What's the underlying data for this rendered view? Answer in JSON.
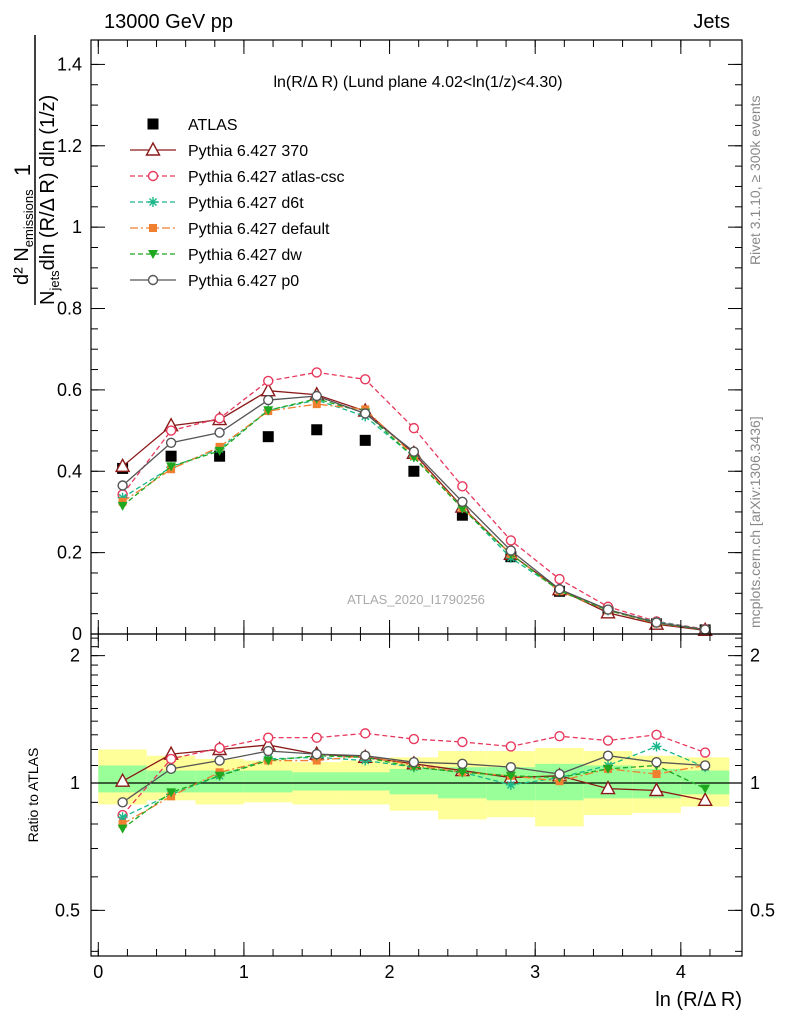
{
  "header": {
    "left": "13000 GeV pp",
    "right": "Jets"
  },
  "side": {
    "rivet": "Rivet 3.1.10, ≥ 300k events",
    "mcplots": "mcplots.cern.ch [arXiv:1306.3436]"
  },
  "chart_data": {
    "type": "line",
    "title": "ln(R/Δ R) (Lund plane 4.02<ln(1/z)<4.30)",
    "watermark": "ATLAS_2020_I1790256",
    "xlabel": "ln (R/Δ R)",
    "ylabel": {
      "numerator": "d² N",
      "numerator_sub": "emissions",
      "denominator": "N",
      "denominator_sub": "jets",
      "denominator_rest": "dln (R/Δ R) dln (1/z)",
      "prefactor": "1"
    },
    "ratio_ylabel": "Ratio to ATLAS",
    "xlim": [
      -0.05,
      4.42
    ],
    "ylim": [
      0,
      1.46
    ],
    "ratio_ylim": [
      0.39,
      2.25
    ],
    "x_ticks": [
      "0",
      "1",
      "2",
      "3",
      "4"
    ],
    "y_ticks": [
      "0",
      "0.2",
      "0.4",
      "0.6",
      "0.8",
      "1",
      "1.2",
      "1.4"
    ],
    "ratio_ticks": [
      "0.5",
      "1",
      "2"
    ],
    "x": [
      0.167,
      0.5,
      0.833,
      1.167,
      1.5,
      1.833,
      2.167,
      2.5,
      2.833,
      3.167,
      3.5,
      3.833,
      4.167
    ],
    "band_edges": [
      0,
      0.333,
      0.667,
      1.0,
      1.333,
      1.667,
      2.0,
      2.333,
      2.667,
      3.0,
      3.333,
      3.667,
      4.0,
      4.333
    ],
    "band_inner": [
      [
        0.95,
        1.1
      ],
      [
        0.95,
        1.07
      ],
      [
        0.95,
        1.07
      ],
      [
        0.95,
        1.07
      ],
      [
        0.96,
        1.06
      ],
      [
        0.96,
        1.06
      ],
      [
        0.94,
        1.08
      ],
      [
        0.92,
        1.09
      ],
      [
        0.91,
        1.09
      ],
      [
        0.91,
        1.11
      ],
      [
        0.92,
        1.1
      ],
      [
        0.92,
        1.08
      ],
      [
        0.94,
        1.07
      ]
    ],
    "band_outer": [
      [
        0.89,
        1.2
      ],
      [
        0.91,
        1.16
      ],
      [
        0.89,
        1.14
      ],
      [
        0.9,
        1.13
      ],
      [
        0.89,
        1.12
      ],
      [
        0.89,
        1.13
      ],
      [
        0.86,
        1.15
      ],
      [
        0.82,
        1.19
      ],
      [
        0.83,
        1.19
      ],
      [
        0.79,
        1.21
      ],
      [
        0.84,
        1.19
      ],
      [
        0.85,
        1.16
      ],
      [
        0.88,
        1.15
      ]
    ],
    "series": [
      {
        "name": "ATLAS",
        "color": "#000000",
        "marker": "square",
        "line": "none",
        "values": [
          0.407,
          0.437,
          0.437,
          0.485,
          0.502,
          0.476,
          0.4,
          0.292,
          0.19,
          0.105,
          0.054,
          0.025,
          0.01
        ]
      },
      {
        "name": "Pythia 6.427 370",
        "color": "#8b1a1a",
        "marker": "triangle-open",
        "line": "solid",
        "values": [
          0.412,
          0.512,
          0.527,
          0.598,
          0.588,
          0.548,
          0.444,
          0.312,
          0.196,
          0.109,
          0.052,
          0.024,
          0.009
        ],
        "ratio": [
          1.01,
          1.17,
          1.2,
          1.23,
          1.17,
          1.15,
          1.11,
          1.07,
          1.03,
          1.04,
          0.97,
          0.96,
          0.91
        ]
      },
      {
        "name": "Pythia 6.427 atlas-csc",
        "color": "#e8385c",
        "marker": "circle-open",
        "line": "dashed",
        "values": [
          0.343,
          0.5,
          0.53,
          0.622,
          0.643,
          0.626,
          0.506,
          0.363,
          0.23,
          0.135,
          0.067,
          0.031,
          0.012
        ],
        "ratio": [
          0.84,
          1.14,
          1.21,
          1.28,
          1.28,
          1.31,
          1.27,
          1.25,
          1.22,
          1.29,
          1.26,
          1.3,
          1.18
        ]
      },
      {
        "name": "Pythia 6.427 d6t",
        "color": "#1ab88a",
        "marker": "star",
        "line": "dashed",
        "values": [
          0.335,
          0.41,
          0.455,
          0.55,
          0.575,
          0.535,
          0.435,
          0.31,
          0.187,
          0.108,
          0.058,
          0.03,
          0.011
        ],
        "ratio": [
          0.83,
          0.94,
          1.04,
          1.14,
          1.15,
          1.13,
          1.09,
          1.06,
          0.99,
          1.03,
          1.1,
          1.22,
          1.09
        ]
      },
      {
        "name": "Pythia 6.427 default",
        "color": "#f07f30",
        "marker": "square-filled",
        "line": "dashdot",
        "values": [
          0.325,
          0.405,
          0.46,
          0.548,
          0.565,
          0.552,
          0.438,
          0.31,
          0.197,
          0.105,
          0.058,
          0.026,
          0.011
        ],
        "ratio": [
          0.8,
          0.93,
          1.06,
          1.13,
          1.13,
          1.16,
          1.1,
          1.06,
          1.04,
          1.01,
          1.08,
          1.05,
          1.1
        ]
      },
      {
        "name": "Pythia 6.427 dw",
        "color": "#1fa81f",
        "marker": "triangle-down",
        "line": "dashed",
        "values": [
          0.315,
          0.412,
          0.45,
          0.55,
          0.578,
          0.544,
          0.434,
          0.308,
          0.196,
          0.106,
          0.058,
          0.027,
          0.01
        ],
        "ratio": [
          0.78,
          0.95,
          1.04,
          1.13,
          1.16,
          1.15,
          1.09,
          1.06,
          1.04,
          1.03,
          1.08,
          1.1,
          0.97
        ]
      },
      {
        "name": "Pythia 6.427 p0",
        "color": "#555555",
        "marker": "circle-open",
        "line": "solid",
        "values": [
          0.365,
          0.47,
          0.495,
          0.575,
          0.585,
          0.542,
          0.448,
          0.325,
          0.205,
          0.11,
          0.06,
          0.028,
          0.011
        ],
        "ratio": [
          0.9,
          1.08,
          1.13,
          1.19,
          1.17,
          1.16,
          1.12,
          1.11,
          1.09,
          1.05,
          1.16,
          1.12,
          1.1
        ]
      }
    ]
  }
}
